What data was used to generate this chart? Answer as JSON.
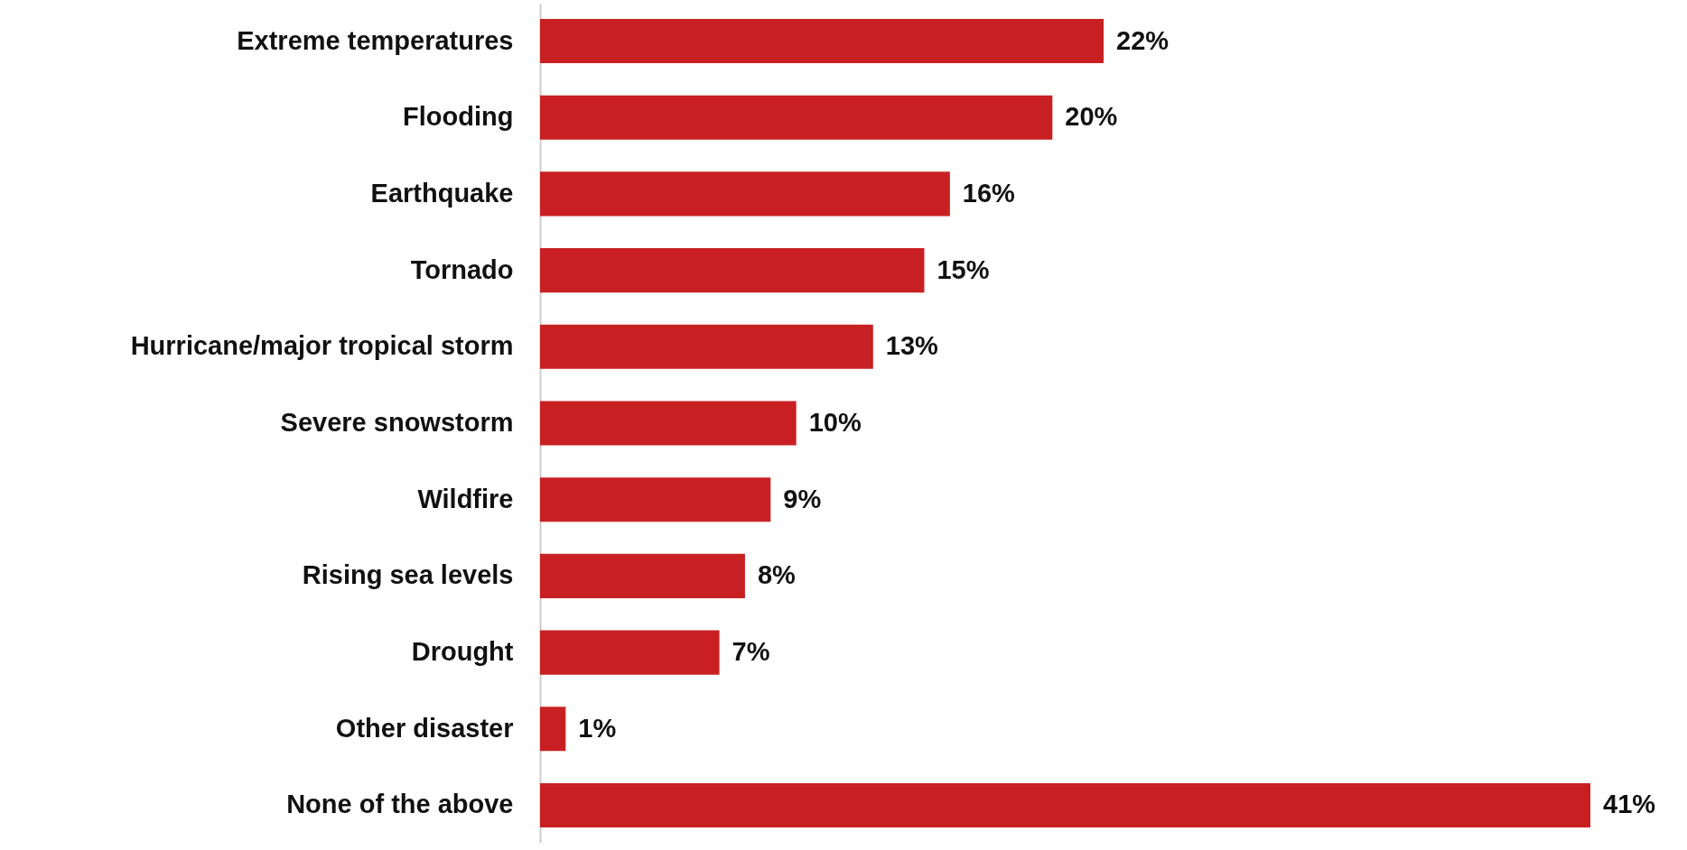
{
  "chart_data": {
    "type": "bar",
    "orientation": "horizontal",
    "data_labels": true,
    "categories": [
      "Extreme temperatures",
      "Flooding",
      "Earthquake",
      "Tornado",
      "Hurricane/major tropical storm",
      "Severe snowstorm",
      "Wildfire",
      "Rising sea levels",
      "Drought",
      "Other disaster",
      "None of the above"
    ],
    "values": [
      22,
      20,
      16,
      15,
      13,
      10,
      9,
      8,
      7,
      1,
      41
    ],
    "value_labels": [
      "22%",
      "20%",
      "16%",
      "15%",
      "13%",
      "10%",
      "9%",
      "8%",
      "7%",
      "1%",
      "41%"
    ],
    "color": "#c82022"
  }
}
